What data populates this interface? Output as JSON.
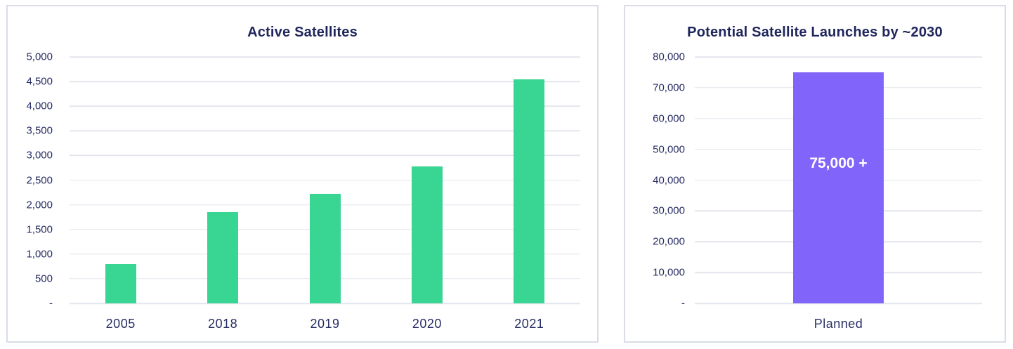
{
  "palette": {
    "text_navy": "#272d63",
    "title_navy": "#20265c",
    "grid_color": "#e3e5ee",
    "card_border": "#dadde8",
    "green_bar": "#38d593",
    "purple_bar": "#8165fb",
    "background": "#ffffff"
  },
  "chart_data": [
    {
      "type": "bar",
      "title": "Active Satellites",
      "categories": [
        "2005",
        "2018",
        "2019",
        "2020",
        "2021"
      ],
      "values": [
        800,
        1850,
        2220,
        2780,
        4550
      ],
      "bar_color": "#38d593",
      "xlabel": "",
      "ylabel": "",
      "ylim": [
        0,
        5000
      ],
      "ytick_step": 500,
      "ytick_labels": [
        "-",
        "500",
        "1,000",
        "1,500",
        "2,000",
        "2,500",
        "3,000",
        "3,500",
        "4,000",
        "4,500",
        "5,000"
      ],
      "grid": true,
      "legend": "none"
    },
    {
      "type": "bar",
      "title": "Potential Satellite Launches by ~2030",
      "categories": [
        "Planned"
      ],
      "values": [
        75000
      ],
      "bar_labels": [
        "75,000 +"
      ],
      "bar_color": "#8165fb",
      "xlabel": "",
      "ylabel": "",
      "ylim": [
        0,
        80000
      ],
      "ytick_step": 10000,
      "ytick_labels": [
        "-",
        "10,000",
        "20,000",
        "30,000",
        "40,000",
        "50,000",
        "60,000",
        "70,000",
        "80,000"
      ],
      "grid": true,
      "legend": "none"
    }
  ]
}
